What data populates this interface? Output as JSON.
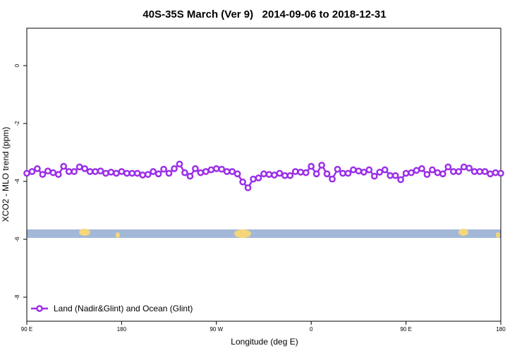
{
  "chart_data": {
    "type": "line",
    "title": "40S-35S March (Ver 9)   2014-09-06 to 2018-12-31",
    "x_label": "Longitude (deg E)",
    "y_label": "XCO2 - MLO trend (ppm)",
    "xlim": [
      90,
      540
    ],
    "xticks": [
      {
        "value": 90,
        "label": "90 E"
      },
      180,
      {
        "value": 270,
        "label": "90 W"
      },
      {
        "value": 360,
        "label": "0"
      },
      {
        "value": 450,
        "label": "90 E"
      },
      {
        "value": 540,
        "label": "180"
      }
    ],
    "ylim": [
      -8.83,
      1.29
    ],
    "yticks": [
      0,
      -2,
      -4,
      -6,
      -8
    ],
    "legend": "bottom-left",
    "x": [
      90,
      95,
      100,
      105,
      110,
      115,
      120,
      125,
      130,
      135,
      140,
      145,
      150,
      155,
      160,
      165,
      170,
      175,
      180,
      185,
      190,
      195,
      200,
      205,
      210,
      215,
      220,
      225,
      230,
      235,
      240,
      245,
      250,
      255,
      260,
      265,
      270,
      275,
      280,
      285,
      290,
      295,
      300,
      305,
      310,
      315,
      320,
      325,
      330,
      335,
      340,
      345,
      350,
      355,
      360,
      365,
      370,
      375,
      380,
      385,
      390,
      395,
      400,
      405,
      410,
      415,
      420,
      425,
      430,
      435,
      440,
      445,
      450,
      455,
      460,
      465,
      470,
      475,
      480,
      485,
      490,
      495,
      500,
      505,
      510,
      515,
      520,
      525,
      530,
      535,
      540
    ],
    "series": [
      {
        "name": "Land (Nadir&Glint) and Ocean (Glint)",
        "color": "#9b2fe8",
        "values": [
          -3.72,
          -3.66,
          -3.56,
          -3.76,
          -3.64,
          -3.7,
          -3.76,
          -3.48,
          -3.66,
          -3.66,
          -3.5,
          -3.56,
          -3.66,
          -3.66,
          -3.64,
          -3.72,
          -3.68,
          -3.72,
          -3.66,
          -3.72,
          -3.72,
          -3.72,
          -3.78,
          -3.76,
          -3.66,
          -3.74,
          -3.58,
          -3.72,
          -3.56,
          -3.4,
          -3.7,
          -3.82,
          -3.56,
          -3.7,
          -3.66,
          -3.6,
          -3.56,
          -3.58,
          -3.66,
          -3.66,
          -3.74,
          -4.02,
          -4.22,
          -3.92,
          -3.88,
          -3.74,
          -3.76,
          -3.78,
          -3.72,
          -3.8,
          -3.8,
          -3.66,
          -3.68,
          -3.7,
          -3.48,
          -3.74,
          -3.44,
          -3.74,
          -3.92,
          -3.58,
          -3.72,
          -3.72,
          -3.6,
          -3.64,
          -3.68,
          -3.6,
          -3.82,
          -3.68,
          -3.6,
          -3.8,
          -3.8,
          -3.94,
          -3.72,
          -3.7,
          -3.62,
          -3.56,
          -3.76,
          -3.6,
          -3.7,
          -3.74,
          -3.5,
          -3.66,
          -3.66,
          -3.5,
          -3.54,
          -3.66,
          -3.66,
          -3.66,
          -3.74,
          -3.7,
          -3.72
        ]
      }
    ]
  }
}
